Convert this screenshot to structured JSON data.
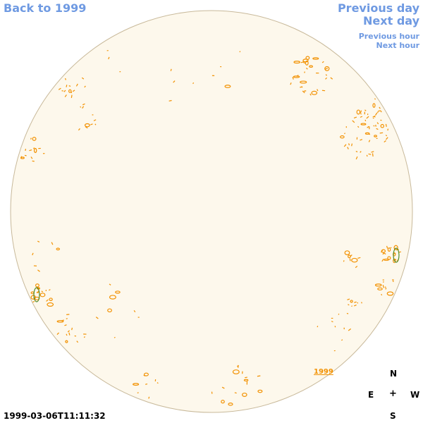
{
  "nav": {
    "back": "Back to 1999",
    "previous_day": "Previous day",
    "next_day": "Next day",
    "previous_hour": "Previous hour",
    "next_hour": "Next hour"
  },
  "map": {
    "year_label": "1999",
    "disc_fill": "#fdf8ec",
    "disc_stroke": "#c8b99a",
    "contour_color": "#f29100",
    "accent_green": "#4f8a2a"
  },
  "compass": {
    "north": "N",
    "east": "E",
    "center": "+",
    "west": "W",
    "south": "S"
  },
  "timestamp": "1999-03-06T11:11:32"
}
